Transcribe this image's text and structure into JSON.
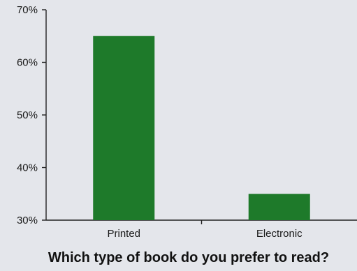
{
  "chart_data": {
    "type": "bar",
    "title": "Which type of book do you prefer to read?",
    "categories": [
      "Printed",
      "Electronic"
    ],
    "values": [
      65,
      35
    ],
    "ylim": [
      30,
      70
    ],
    "yticks": [
      30,
      40,
      50,
      60,
      70
    ],
    "ytick_labels": [
      "30%",
      "40%",
      "50%",
      "60%",
      "70%"
    ],
    "bar_color": "#1e7a2a",
    "grid": false
  }
}
